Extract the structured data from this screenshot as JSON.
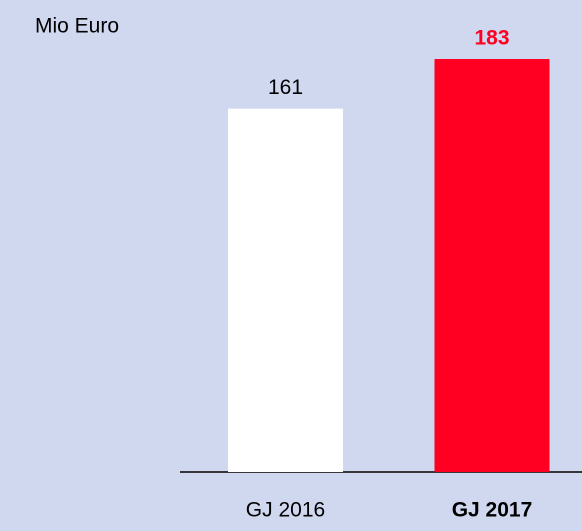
{
  "chart_data": {
    "type": "bar",
    "y_label": "Mio Euro",
    "categories": [
      "GJ 2016",
      "GJ 2017"
    ],
    "values": [
      161,
      183
    ],
    "colors": [
      "#ffffff",
      "#ff0022"
    ]
  }
}
